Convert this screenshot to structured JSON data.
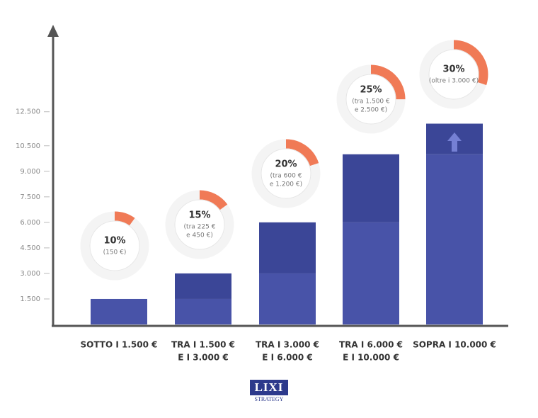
{
  "chart_data": {
    "type": "bar",
    "categories": [
      [
        "SOTTO I 1.500 €"
      ],
      [
        "TRA I 1.500 €",
        "E I 3.000 €"
      ],
      [
        "TRA I 3.000 €",
        "E I 6.000 €"
      ],
      [
        "TRA I 6.000 €",
        "E I 10.000 €"
      ],
      [
        "SOPRA I 10.000 €"
      ]
    ],
    "series": [
      {
        "color": "#4853a8",
        "values": [
          1500,
          1500,
          3000,
          6000,
          10000
        ]
      },
      {
        "color": "#3b4697",
        "values": [
          0,
          1500,
          3000,
          4000,
          1800
        ]
      }
    ],
    "ylim": [
      0,
      17400
    ],
    "yticks": [
      {
        "value": 1500,
        "label": "1.500"
      },
      {
        "value": 3000,
        "label": "3.000"
      },
      {
        "value": 4500,
        "label": "4.500"
      },
      {
        "value": 6000,
        "label": "6.000"
      },
      {
        "value": 7500,
        "label": "7.500"
      },
      {
        "value": 9000,
        "label": "9.000"
      },
      {
        "value": 10500,
        "label": "10.500"
      },
      {
        "value": 12500,
        "label": "12.500"
      }
    ],
    "shares": {
      "color": "#f07a56",
      "values": [
        10,
        15,
        20,
        25,
        30
      ],
      "value_labels": [
        "10%",
        "15%",
        "20%",
        "25%",
        "30%"
      ],
      "notes": [
        [
          "(150 €)"
        ],
        [
          "(tra 225 €",
          "e 450 €)"
        ],
        [
          "(tra 600 €",
          "e 1.200 €)"
        ],
        [
          "(tra 1.500 €",
          "e 2.500 €)"
        ],
        [
          "(oltre i 3.000 €)"
        ]
      ]
    }
  },
  "logo": {
    "title": "LIXI",
    "subtitle": "STRATEGY"
  }
}
